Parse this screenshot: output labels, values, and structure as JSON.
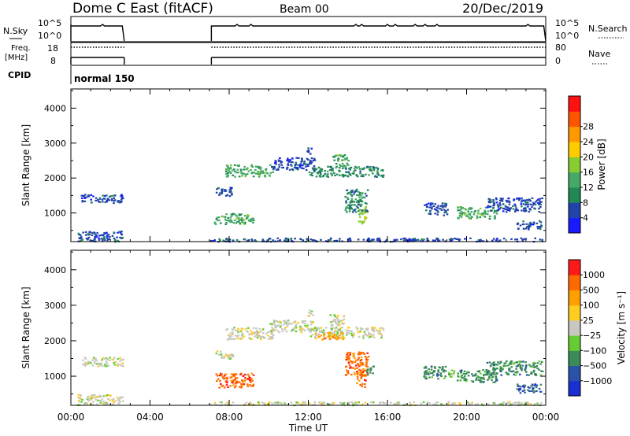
{
  "header": {
    "title": "Dome C East (fitACF)",
    "beam": "Beam 00",
    "date": "20/Dec/2019"
  },
  "top_panels": {
    "sky": {
      "left_label": "N.Sky",
      "right_label": "N.Search",
      "left_ticks": [
        "10^5",
        "10^0"
      ],
      "right_ticks": [
        "10^5",
        "10^0"
      ]
    },
    "freq": {
      "left_label_1": "Freq.",
      "left_label_2": "[MHz]",
      "right_label": "Nave",
      "left_ticks": [
        "18",
        "8"
      ],
      "right_ticks": [
        "80",
        "0"
      ]
    },
    "cpid": {
      "label": "CPID",
      "mode": "normal 150"
    }
  },
  "chart_data": [
    {
      "type": "heatmap",
      "title": "",
      "ylabel": "Slant Range [km]",
      "ylim": [
        180,
        4550
      ],
      "y_ticks": [
        "1000",
        "2000",
        "3000",
        "4000"
      ],
      "x_range_hours": [
        0,
        24
      ],
      "grid": false,
      "colorbar": {
        "label": "Power [dB]",
        "ticks": [
          "4",
          "8",
          "12",
          "16",
          "20",
          "24",
          "28"
        ],
        "colors": [
          "#1a1aff",
          "#2244aa",
          "#228855",
          "#44aa66",
          "#88cc33",
          "#ffcc00",
          "#ff9900",
          "#ff5500",
          "#ff1111"
        ]
      },
      "echo_regions": [
        {
          "t0": 0.5,
          "t1": 2.6,
          "r0": 1300,
          "r1": 1550,
          "level": 1
        },
        {
          "t0": 7.3,
          "t1": 8.2,
          "r0": 1500,
          "r1": 1750,
          "level": 1
        },
        {
          "t0": 7.2,
          "t1": 9.2,
          "r0": 700,
          "r1": 1000,
          "level": 3
        },
        {
          "t0": 7.8,
          "t1": 10.2,
          "r0": 2050,
          "r1": 2400,
          "level": 3
        },
        {
          "t0": 10.0,
          "t1": 12.3,
          "r0": 2250,
          "r1": 2600,
          "level": 1
        },
        {
          "t0": 11.9,
          "t1": 12.2,
          "r0": 2700,
          "r1": 2900,
          "level": 1
        },
        {
          "t0": 12.0,
          "t1": 15.8,
          "r0": 2050,
          "r1": 2350,
          "level": 2
        },
        {
          "t0": 13.2,
          "t1": 14.0,
          "r0": 2350,
          "r1": 2700,
          "level": 3
        },
        {
          "t0": 13.8,
          "t1": 15.0,
          "r0": 1050,
          "r1": 1700,
          "level": 2
        },
        {
          "t0": 14.5,
          "t1": 14.9,
          "r0": 700,
          "r1": 1200,
          "level": 4
        },
        {
          "t0": 19.5,
          "t1": 21.5,
          "r0": 850,
          "r1": 1200,
          "level": 3
        },
        {
          "t0": 21.0,
          "t1": 23.8,
          "r0": 1050,
          "r1": 1450,
          "level": 1
        },
        {
          "t0": 17.8,
          "t1": 19.0,
          "r0": 950,
          "r1": 1300,
          "level": 1
        },
        {
          "t0": 22.5,
          "t1": 23.8,
          "r0": 550,
          "r1": 800,
          "level": 1
        },
        {
          "t0": 0.3,
          "t1": 2.6,
          "r0": 200,
          "r1": 500,
          "level": 1
        },
        {
          "t0": 7.0,
          "t1": 23.8,
          "r0": 200,
          "r1": 300,
          "level": 1
        }
      ]
    },
    {
      "type": "heatmap",
      "title": "",
      "ylabel": "Slant Range [km]",
      "ylim": [
        180,
        4550
      ],
      "y_ticks": [
        "1000",
        "2000",
        "3000",
        "4000"
      ],
      "x_range_hours": [
        0,
        24
      ],
      "x_ticks": [
        "00:00",
        "04:00",
        "08:00",
        "12:00",
        "16:00",
        "20:00",
        "00:00"
      ],
      "xlabel": "Time UT",
      "grid": false,
      "colorbar": {
        "label": "Velocity [m s⁻¹]",
        "ticks": [
          "1000",
          "500",
          "100",
          "25",
          "−25",
          "−100",
          "−500",
          "−1000"
        ],
        "colors": [
          "#1a2fd0",
          "#2a52a8",
          "#3a8a5a",
          "#66cc33",
          "#c8c8c0",
          "#ffcc22",
          "#ffa000",
          "#ff6a00",
          "#ff1a1a"
        ]
      },
      "echo_regions": [
        {
          "t0": 0.5,
          "t1": 2.6,
          "r0": 1300,
          "r1": 1550,
          "level": 4
        },
        {
          "t0": 7.3,
          "t1": 8.2,
          "r0": 1500,
          "r1": 1750,
          "level": 4
        },
        {
          "t0": 7.2,
          "t1": 9.2,
          "r0": 700,
          "r1": 1100,
          "level": 7
        },
        {
          "t0": 7.8,
          "t1": 10.2,
          "r0": 2050,
          "r1": 2400,
          "level": 4
        },
        {
          "t0": 10.0,
          "t1": 12.3,
          "r0": 2250,
          "r1": 2600,
          "level": 4
        },
        {
          "t0": 11.9,
          "t1": 12.2,
          "r0": 2700,
          "r1": 2900,
          "level": 4
        },
        {
          "t0": 12.0,
          "t1": 15.8,
          "r0": 2100,
          "r1": 2400,
          "level": 4
        },
        {
          "t0": 13.0,
          "t1": 13.9,
          "r0": 2450,
          "r1": 2750,
          "level": 4
        },
        {
          "t0": 12.3,
          "t1": 13.8,
          "r0": 2050,
          "r1": 2250,
          "level": 6
        },
        {
          "t0": 13.8,
          "t1": 15.0,
          "r0": 1050,
          "r1": 1700,
          "level": 7
        },
        {
          "t0": 14.4,
          "t1": 14.9,
          "r0": 700,
          "r1": 1200,
          "level": 7
        },
        {
          "t0": 14.9,
          "t1": 15.3,
          "r0": 1050,
          "r1": 1300,
          "level": 2
        },
        {
          "t0": 17.8,
          "t1": 19.0,
          "r0": 950,
          "r1": 1300,
          "level": 2
        },
        {
          "t0": 19.0,
          "t1": 19.4,
          "r0": 1000,
          "r1": 1200,
          "level": 3
        },
        {
          "t0": 19.5,
          "t1": 21.5,
          "r0": 850,
          "r1": 1200,
          "level": 2
        },
        {
          "t0": 21.0,
          "t1": 23.8,
          "r0": 1050,
          "r1": 1450,
          "level": 2
        },
        {
          "t0": 22.5,
          "t1": 23.8,
          "r0": 550,
          "r1": 800,
          "level": 1
        },
        {
          "t0": 0.3,
          "t1": 2.6,
          "r0": 200,
          "r1": 500,
          "level": 4
        },
        {
          "t0": 7.0,
          "t1": 23.8,
          "r0": 200,
          "r1": 300,
          "level": 4
        }
      ]
    }
  ]
}
